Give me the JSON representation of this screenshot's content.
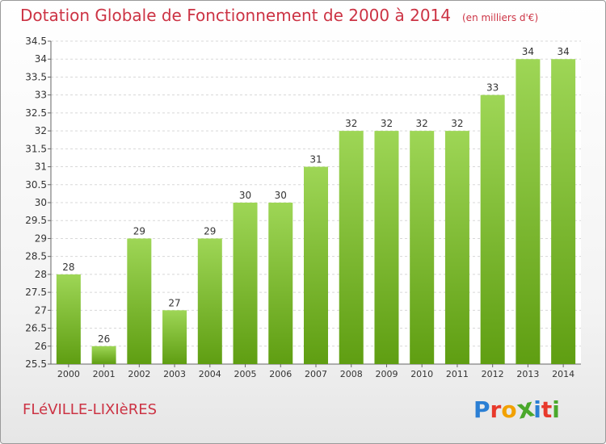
{
  "chart_data": {
    "type": "bar",
    "title": "Dotation Globale de Fonctionnement de 2000 à 2014",
    "unit": "(en milliers d'€)",
    "categories": [
      "2000",
      "2001",
      "2002",
      "2003",
      "2004",
      "2005",
      "2006",
      "2007",
      "2008",
      "2009",
      "2010",
      "2011",
      "2012",
      "2013",
      "2014"
    ],
    "values": [
      28,
      26,
      29,
      27,
      29,
      30,
      30,
      31,
      32,
      32,
      32,
      32,
      33,
      34,
      34
    ],
    "ylim": [
      25.5,
      34.5
    ],
    "yticks": [
      "25.5",
      "26",
      "26.5",
      "27",
      "27.5",
      "28",
      "28.5",
      "29",
      "29.5",
      "30",
      "30.5",
      "31",
      "31.5",
      "32",
      "32.5",
      "33",
      "33.5",
      "34",
      "34.5"
    ],
    "grid": true,
    "colors": {
      "bar_top": "#9ed656",
      "bar_bottom": "#5f9e12",
      "title": "#cc3344",
      "grid": "#d8d8d8"
    }
  },
  "footer": {
    "commune": "FLéVILLE-LIXIèRES",
    "logo_letters": [
      "P",
      "r",
      "o",
      "x",
      "i",
      "t",
      "i"
    ],
    "logo_colors": [
      "#2b7fd4",
      "#e8392b",
      "#f2a100",
      "#4aa82b",
      "#2b7fd4",
      "#e8392b",
      "#4aa82b"
    ]
  }
}
